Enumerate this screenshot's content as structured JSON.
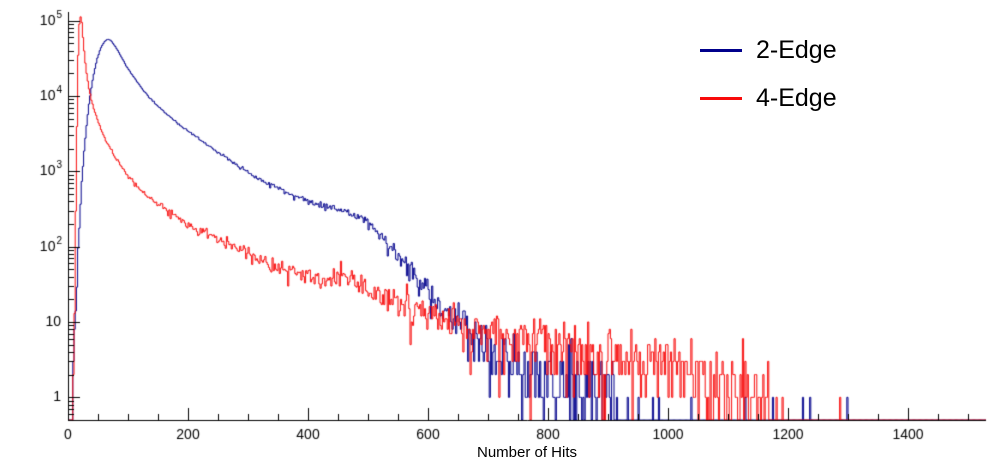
{
  "figure": {
    "background": "#ffffff",
    "legend": {
      "entries": [
        {
          "label": "2-Edge",
          "color": "#00008c"
        },
        {
          "label": "4-Edge",
          "color": "#f80b0b"
        }
      ]
    }
  },
  "chart_data": {
    "type": "histogram",
    "title": "",
    "xlabel": "Number of Hits",
    "ylabel": "",
    "y_scale": "log",
    "grid": false,
    "legend_position": "top-right",
    "x_range": [
      0,
      1530
    ],
    "y_range": [
      0.5,
      130000
    ],
    "x_major_ticks": [
      0,
      200,
      400,
      600,
      800,
      1000,
      1200,
      1400
    ],
    "x_minor_tick_step": 50,
    "y_major_ticks": [
      {
        "value": 1,
        "label": "1"
      },
      {
        "value": 10,
        "label": "10"
      },
      {
        "value": 100,
        "label": "10",
        "exp": "2"
      },
      {
        "value": 1000,
        "label": "10",
        "exp": "3"
      },
      {
        "value": 10000,
        "label": "10",
        "exp": "4"
      },
      {
        "value": 100000,
        "label": "10",
        "exp": "5"
      }
    ],
    "bin_width": 2,
    "series": [
      {
        "name": "2-Edge",
        "color": "#00008c",
        "seed": 1337,
        "peak": {
          "x": 66,
          "count": 57000
        },
        "anchors": [
          [
            6,
            0.5
          ],
          [
            10,
            4
          ],
          [
            14,
            25
          ],
          [
            18,
            130
          ],
          [
            22,
            550
          ],
          [
            26,
            1500
          ],
          [
            30,
            3500
          ],
          [
            36,
            9000
          ],
          [
            42,
            18000
          ],
          [
            48,
            30000
          ],
          [
            54,
            42000
          ],
          [
            60,
            52000
          ],
          [
            66,
            57000
          ],
          [
            72,
            54000
          ],
          [
            80,
            44000
          ],
          [
            88,
            34000
          ],
          [
            96,
            26000
          ],
          [
            105,
            20000
          ],
          [
            115,
            15500
          ],
          [
            125,
            12000
          ],
          [
            140,
            8800
          ],
          [
            155,
            6700
          ],
          [
            170,
            5300
          ],
          [
            190,
            3900
          ],
          [
            210,
            3000
          ],
          [
            230,
            2300
          ],
          [
            250,
            1800
          ],
          [
            270,
            1400
          ],
          [
            290,
            1100
          ],
          [
            310,
            880
          ],
          [
            330,
            720
          ],
          [
            350,
            600
          ],
          [
            370,
            500
          ],
          [
            390,
            430
          ],
          [
            410,
            380
          ],
          [
            430,
            340
          ],
          [
            450,
            310
          ],
          [
            465,
            290
          ],
          [
            480,
            260
          ],
          [
            495,
            220
          ],
          [
            510,
            170
          ],
          [
            525,
            130
          ],
          [
            540,
            95
          ],
          [
            555,
            68
          ],
          [
            570,
            48
          ],
          [
            585,
            36
          ],
          [
            600,
            27
          ],
          [
            615,
            21
          ],
          [
            630,
            16
          ],
          [
            645,
            12
          ],
          [
            660,
            9.5
          ],
          [
            680,
            7
          ],
          [
            700,
            5.2
          ],
          [
            720,
            4
          ],
          [
            740,
            3.2
          ],
          [
            760,
            2.6
          ],
          [
            790,
            2.1
          ],
          [
            820,
            1.8
          ],
          [
            850,
            1.5
          ],
          [
            880,
            1.2
          ],
          [
            900,
            0.9
          ],
          [
            915,
            0.35
          ],
          [
            935,
            0.12
          ],
          [
            960,
            0.05
          ],
          [
            1000,
            0.03
          ],
          [
            1060,
            0.025
          ],
          [
            1140,
            0.02
          ],
          [
            1220,
            0.02
          ],
          [
            1300,
            0.02
          ],
          [
            1380,
            0.012
          ],
          [
            1460,
            0.012
          ],
          [
            1530,
            0.01
          ]
        ]
      },
      {
        "name": "4-Edge",
        "color": "#f80b0b",
        "seed": 9001,
        "peak": {
          "x": 21,
          "count": 112000
        },
        "anchors": [
          [
            8,
            0.4
          ],
          [
            11,
            15
          ],
          [
            13,
            300
          ],
          [
            15,
            4000
          ],
          [
            17,
            35000
          ],
          [
            19,
            90000
          ],
          [
            21,
            112000
          ],
          [
            23,
            95000
          ],
          [
            25,
            60000
          ],
          [
            28,
            32000
          ],
          [
            31,
            20000
          ],
          [
            35,
            12500
          ],
          [
            40,
            8200
          ],
          [
            45,
            6000
          ],
          [
            50,
            4600
          ],
          [
            57,
            3300
          ],
          [
            65,
            2400
          ],
          [
            73,
            1850
          ],
          [
            82,
            1400
          ],
          [
            92,
            1050
          ],
          [
            102,
            830
          ],
          [
            115,
            640
          ],
          [
            130,
            490
          ],
          [
            145,
            390
          ],
          [
            162,
            310
          ],
          [
            180,
            250
          ],
          [
            200,
            200
          ],
          [
            222,
            160
          ],
          [
            245,
            130
          ],
          [
            270,
            105
          ],
          [
            295,
            86
          ],
          [
            320,
            70
          ],
          [
            345,
            58
          ],
          [
            370,
            49
          ],
          [
            395,
            42
          ],
          [
            420,
            37
          ],
          [
            440,
            36
          ],
          [
            455,
            42
          ],
          [
            470,
            36
          ],
          [
            490,
            29
          ],
          [
            515,
            23
          ],
          [
            540,
            19
          ],
          [
            570,
            15.5
          ],
          [
            600,
            12.5
          ],
          [
            635,
            10
          ],
          [
            670,
            8.3
          ],
          [
            705,
            7
          ],
          [
            740,
            6
          ],
          [
            780,
            5.2
          ],
          [
            820,
            4.6
          ],
          [
            860,
            4
          ],
          [
            900,
            3.5
          ],
          [
            940,
            3
          ],
          [
            980,
            2.6
          ],
          [
            1020,
            2.2
          ],
          [
            1060,
            1.9
          ],
          [
            1100,
            1.6
          ],
          [
            1130,
            1.3
          ],
          [
            1155,
            1.0
          ],
          [
            1175,
            0.5
          ],
          [
            1195,
            0.15
          ],
          [
            1220,
            0.06
          ],
          [
            1250,
            0.02
          ],
          [
            1530,
            0.004
          ]
        ]
      }
    ]
  }
}
